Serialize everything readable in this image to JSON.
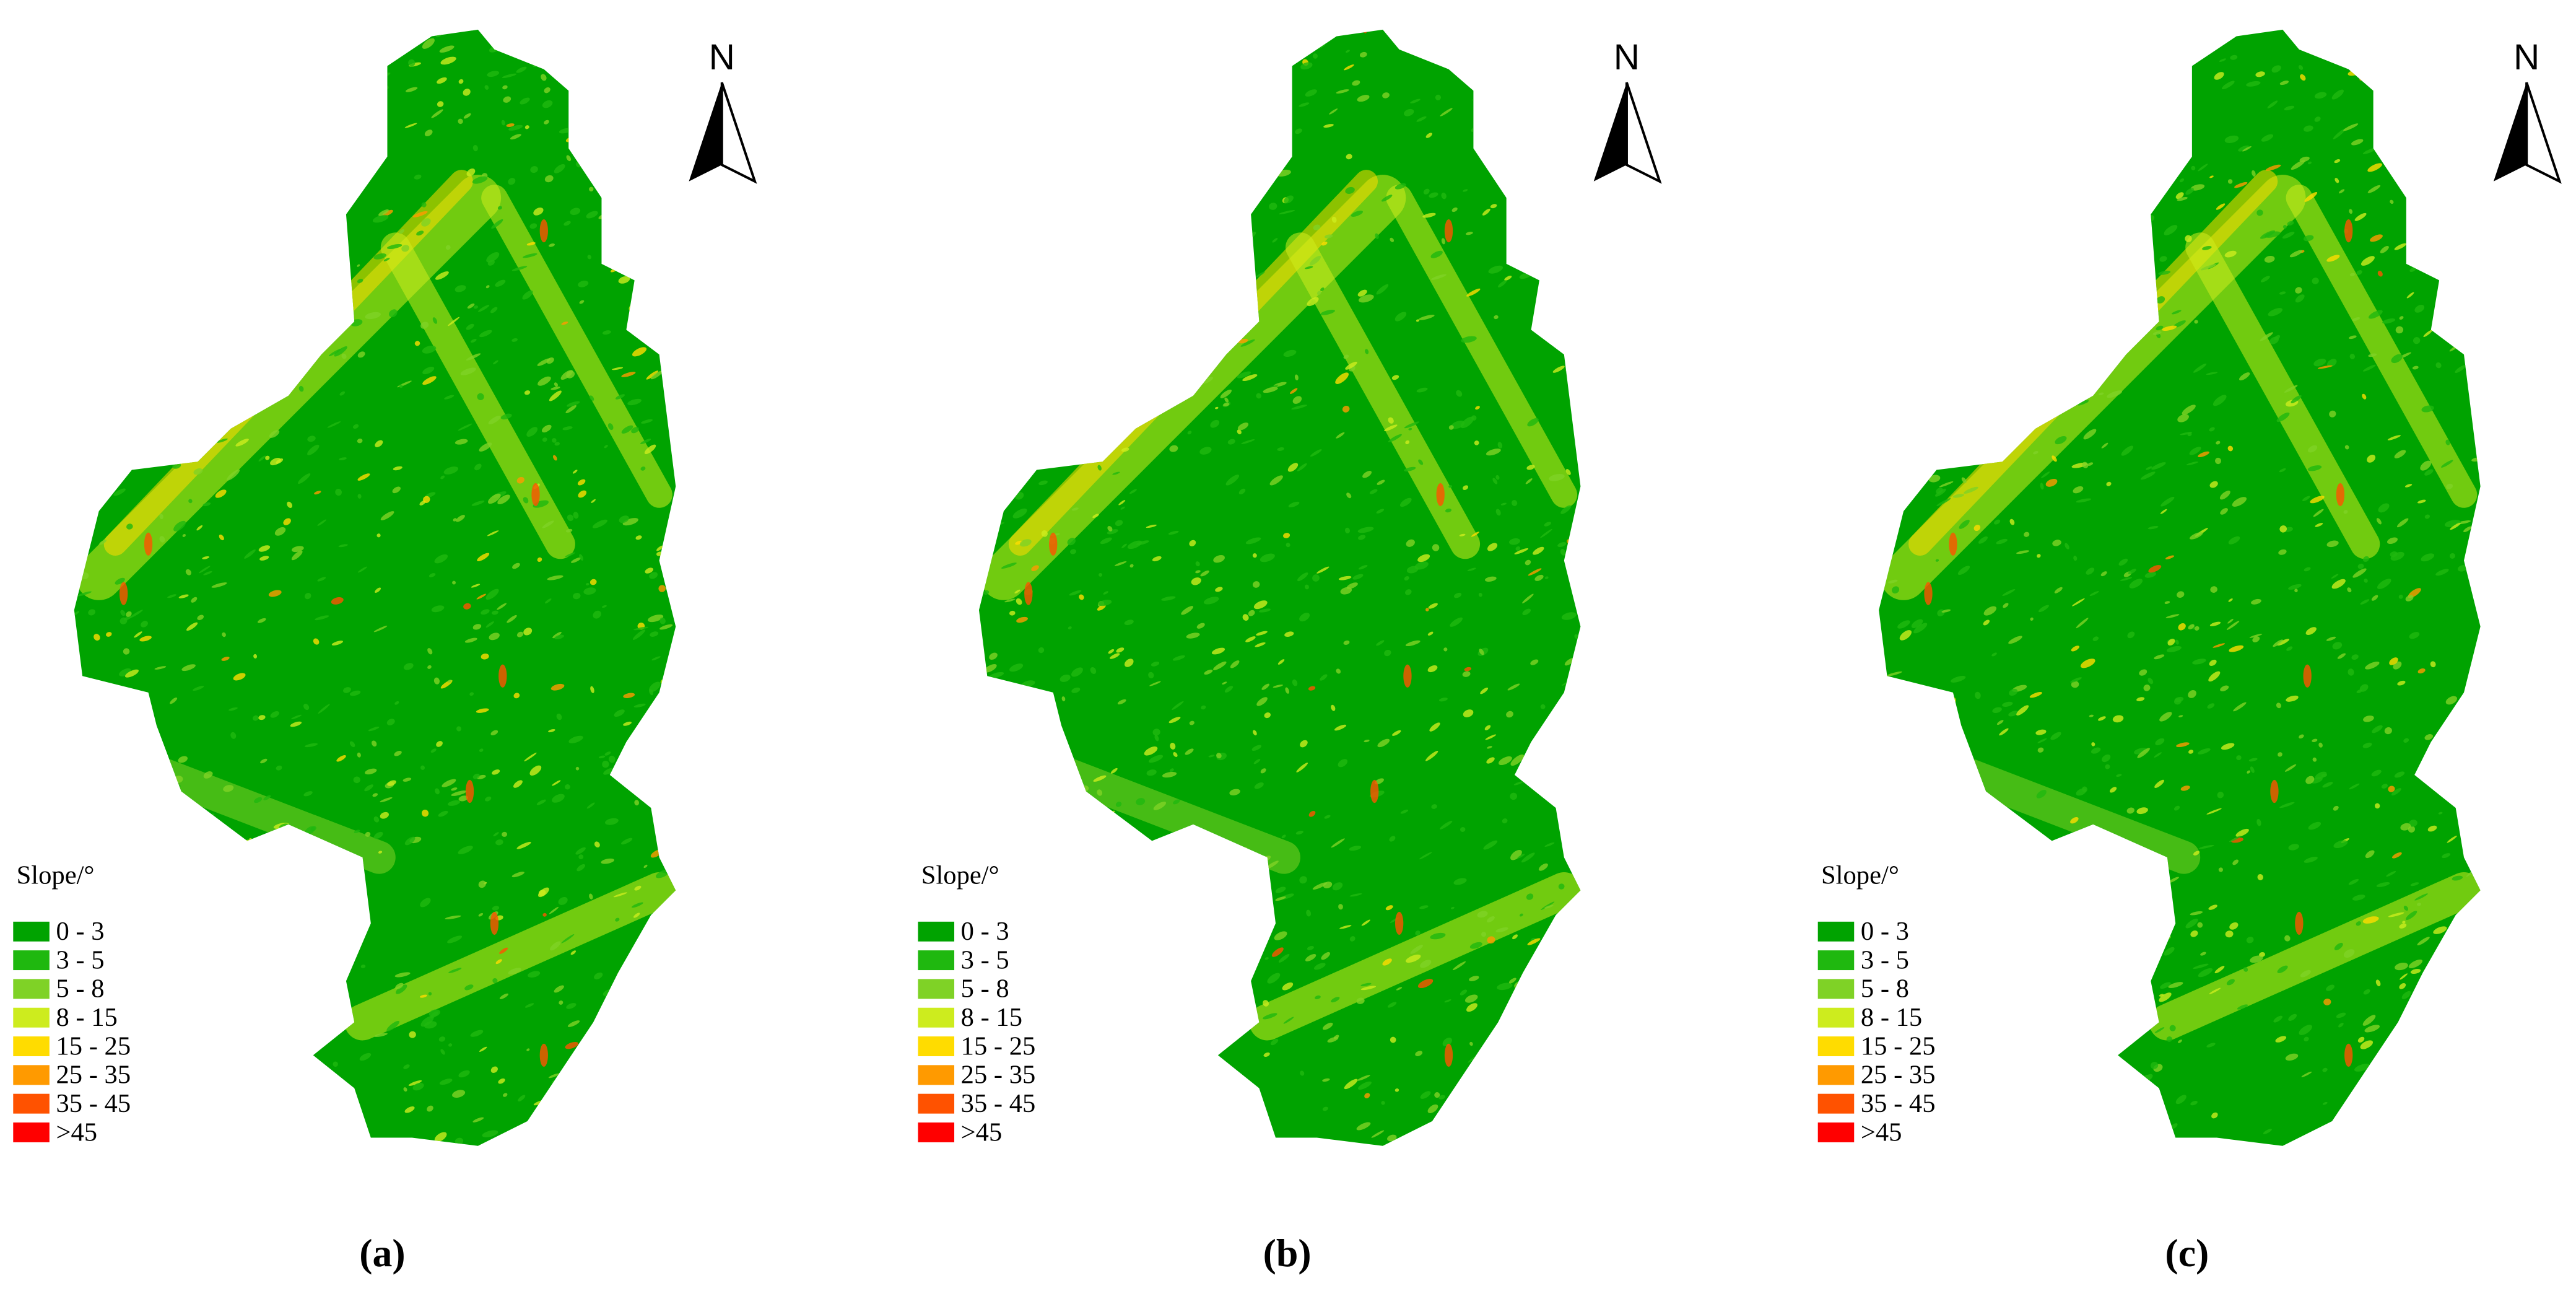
{
  "panels": [
    {
      "label": "(a)",
      "north": "N",
      "legend": {
        "title": "Slope/°",
        "items": [
          {
            "label": "0 - 3",
            "color": "#00a300"
          },
          {
            "label": "3 - 5",
            "color": "#1fb80f"
          },
          {
            "label": "5 - 8",
            "color": "#7fd226"
          },
          {
            "label": "8 - 15",
            "color": "#cdec1e"
          },
          {
            "label": "15 - 25",
            "color": "#ffdc00"
          },
          {
            "label": "25 - 35",
            "color": "#ff9a00"
          },
          {
            "label": "35 - 45",
            "color": "#ff5200"
          },
          {
            "label": ">45",
            "color": "#ff0000"
          }
        ]
      }
    },
    {
      "label": "(b)",
      "north": "N",
      "legend": {
        "title": "Slope/°",
        "items": [
          {
            "label": "0 - 3",
            "color": "#00a300"
          },
          {
            "label": "3 - 5",
            "color": "#1fb80f"
          },
          {
            "label": "5 - 8",
            "color": "#7fd226"
          },
          {
            "label": "8 - 15",
            "color": "#cdec1e"
          },
          {
            "label": "15 - 25",
            "color": "#ffdc00"
          },
          {
            "label": "25 - 35",
            "color": "#ff9a00"
          },
          {
            "label": "35 - 45",
            "color": "#ff5200"
          },
          {
            "label": ">45",
            "color": "#ff0000"
          }
        ]
      }
    },
    {
      "label": "(c)",
      "north": "N",
      "legend": {
        "title": "Slope/°",
        "items": [
          {
            "label": "0 - 3",
            "color": "#00a300"
          },
          {
            "label": "3 - 5",
            "color": "#1fb80f"
          },
          {
            "label": "5 - 8",
            "color": "#7fd226"
          },
          {
            "label": "8 - 15",
            "color": "#cdec1e"
          },
          {
            "label": "15 - 25",
            "color": "#ffdc00"
          },
          {
            "label": "25 - 35",
            "color": "#ff9a00"
          },
          {
            "label": "35 - 45",
            "color": "#ff5200"
          },
          {
            "label": ">45",
            "color": "#ff0000"
          }
        ]
      }
    }
  ]
}
